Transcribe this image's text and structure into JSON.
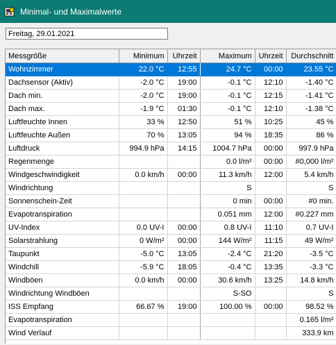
{
  "window": {
    "title": "Minimal- und Maximalwerte",
    "icon": "weather-app-icon"
  },
  "date_field": {
    "value": "Freitag, 29.01.2021"
  },
  "columns": [
    "Messgröße",
    "Minimum",
    "Uhrzeit",
    "Maximum",
    "Uhrzeit",
    "Durchschnitt"
  ],
  "rows": [
    [
      "Wohnzimmer",
      "22.0 °C",
      "12:55",
      "24.7 °C",
      "00:00",
      "23.55 °C"
    ],
    [
      "Dachsensor (Aktiv)",
      "-2.0 °C",
      "19:00",
      "-0.1 °C",
      "12:10",
      "-1.40 °C"
    ],
    [
      "Dach min.",
      "-2.0 °C",
      "19:00",
      "-0.1 °C",
      "12:15",
      "-1.41 °C"
    ],
    [
      "Dach max.",
      "-1.9 °C",
      "01:30",
      "-0.1 °C",
      "12:10",
      "-1.38 °C"
    ],
    [
      "Luftfeuchte Innen",
      "33 %",
      "12:50",
      "51 %",
      "10:25",
      "45 %"
    ],
    [
      "Luftfeuchte Außen",
      "70 %",
      "13:05",
      "94 %",
      "18:35",
      "86 %"
    ],
    [
      "Luftdruck",
      "994.9 hPa",
      "14:15",
      "1004.7 hPa",
      "00:00",
      "997.9 hPa"
    ],
    [
      "Regenmenge",
      "",
      "",
      "0.0 l/m²",
      "00:00",
      "#0,000 l/m²"
    ],
    [
      "Windgeschwindigkeit",
      "0.0 km/h",
      "00:00",
      "11.3 km/h",
      "12:00",
      "5.4 km/h"
    ],
    [
      "Windrichtung",
      "",
      "",
      "S",
      "",
      "S"
    ],
    [
      "Sonnenschein-Zeit",
      "",
      "",
      "0 min",
      "00:00",
      "#0 min."
    ],
    [
      "Evapotranspiration",
      "",
      "",
      "0.051 mm",
      "12:00",
      "#0.227 mm"
    ],
    [
      "UV-Index",
      "0.0 UV-I",
      "00:00",
      "0.8 UV-I",
      "11:10",
      "0.7 UV-I"
    ],
    [
      "Solarstrahlung",
      "0 W/m²",
      "00:00",
      "144 W/m²",
      "11:15",
      "49 W/m²"
    ],
    [
      "Taupunkt",
      "-5.0 °C",
      "13:05",
      "-2.4 °C",
      "21:20",
      "-3.5 °C"
    ],
    [
      "Windchill",
      "-5.9 °C",
      "18:05",
      "-0.4 °C",
      "13:35",
      "-3.3 °C"
    ],
    [
      "Windböen",
      "0.0 km/h",
      "00:00",
      "30.6 km/h",
      "13:25",
      "14.8 km/h"
    ],
    [
      "Windrichtung Windböen",
      "",
      "",
      "S-SO",
      "",
      "S"
    ],
    [
      "ISS Empfang",
      "66.67 %",
      "19:00",
      "100.00 %",
      "00:00",
      "98.52 %"
    ],
    [
      "Evapotranspiration",
      "",
      "",
      "",
      "",
      "0.165 l/m²"
    ],
    [
      "Wind Verlauf",
      "",
      "",
      "",
      "",
      "333.9 km"
    ]
  ],
  "selected_row": 0,
  "colors": {
    "titlebar": "#0b7b73",
    "selection": "#0078d7"
  }
}
